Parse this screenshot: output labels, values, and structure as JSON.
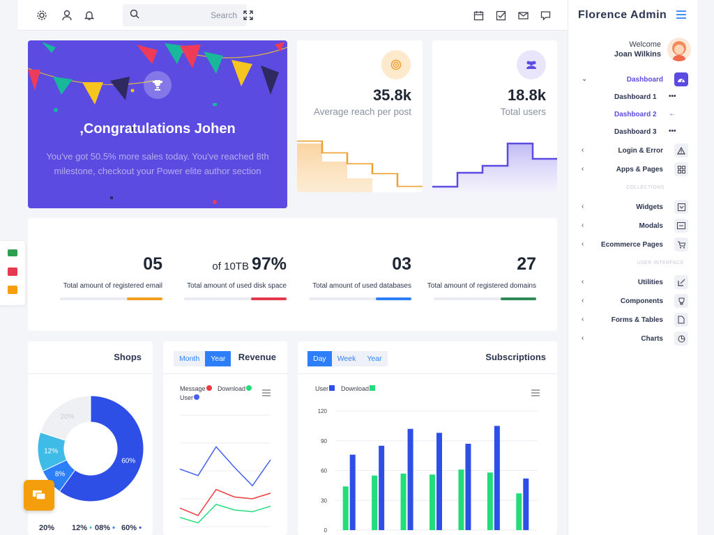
{
  "topbar": {
    "search_placeholder": "Search",
    "left_icons": [
      "gear-icon",
      "user-icon",
      "bell-icon"
    ],
    "right_icons": [
      "calendar-icon",
      "checkbox-icon",
      "mail-icon",
      "chat-icon"
    ]
  },
  "sidebar": {
    "brand": "Florence Admin",
    "welcome": "Welcome",
    "user_name": "Joan Wilkins",
    "dashboard": {
      "label": "Dashboard",
      "icon": "gauge-icon"
    },
    "dashboard_subs": [
      {
        "label": "Dashboard 1",
        "suffix": "•••"
      },
      {
        "label": "Dashboard 2",
        "suffix": "←"
      },
      {
        "label": "Dashboard 3",
        "suffix": "•••"
      }
    ],
    "group1": [
      {
        "label": "Login & Error",
        "icon": "warning-icon"
      },
      {
        "label": "Apps & Pages",
        "icon": "grid-icon"
      }
    ],
    "section_collections": "COLLECTIONS",
    "group2": [
      {
        "label": "Widgets",
        "icon": "widget-icon"
      },
      {
        "label": "Modals",
        "icon": "modal-icon"
      },
      {
        "label": "Ecommerce Pages",
        "icon": "cart-icon"
      }
    ],
    "section_ui": "USER INTERFACE",
    "group3": [
      {
        "label": "Utilities",
        "icon": "edit-icon"
      },
      {
        "label": "Components",
        "icon": "trophy-icon"
      },
      {
        "label": "Forms & Tables",
        "icon": "file-icon"
      },
      {
        "label": "Charts",
        "icon": "pie-icon"
      }
    ]
  },
  "hero": {
    "title": ",Congratulations Johen",
    "desc": "You've got 50.5% more sales today. You've reached 8th milestone, checkout your Power elite author section"
  },
  "stats": [
    {
      "value": "35.8k",
      "label": "Average reach per post",
      "color": "#f0a030"
    },
    {
      "value": "18.8k",
      "label": "Total users",
      "color": "#5b4be0"
    }
  ],
  "metrics": [
    {
      "prefix": "",
      "value": "05",
      "label": "Total amount of registered email",
      "color": "#f0a020",
      "progress": 0.35
    },
    {
      "prefix": "of 10TB",
      "value": "97%",
      "label": "Total amount of used disk space",
      "color": "#e53950",
      "progress": 0.35
    },
    {
      "prefix": "",
      "value": "03",
      "label": "Total amount of used databases",
      "color": "#2d7ff9",
      "progress": 0.35
    },
    {
      "prefix": "",
      "value": "27",
      "label": "Total amount of registered domains",
      "color": "#2e8b57",
      "progress": 0.35
    }
  ],
  "shops": {
    "title": "Shops",
    "bottom_labels": [
      "20%",
      "12%",
      "08%",
      "60%"
    ]
  },
  "revenue": {
    "title": "Revenue",
    "tabs": [
      "Month",
      "Year"
    ],
    "legend": [
      "Message",
      "Download",
      "User"
    ]
  },
  "subscriptions": {
    "title": "Subscriptions",
    "tabs": [
      "Day",
      "Week",
      "Year"
    ],
    "legend": [
      "User",
      "Download"
    ]
  },
  "chart_data": [
    {
      "type": "pie",
      "title": "Shops",
      "labels": [
        "60%",
        "8%",
        "12%",
        "20%"
      ],
      "values": [
        60,
        8,
        12,
        20
      ],
      "colors": [
        "#2d4fe6",
        "#2d7ff9",
        "#3fbbe8",
        "#eef0f4"
      ]
    },
    {
      "type": "line",
      "title": "Revenue",
      "series": [
        {
          "name": "Message",
          "color": "#ee3b3b",
          "values": [
            20,
            12,
            40,
            32,
            30,
            36
          ]
        },
        {
          "name": "Download",
          "color": "#22dd7a",
          "values": [
            10,
            4,
            24,
            18,
            16,
            22
          ]
        },
        {
          "name": "User",
          "color": "#4361ee",
          "values": [
            62,
            55,
            86,
            64,
            44,
            72
          ]
        }
      ],
      "ylim": [
        0,
        120
      ]
    },
    {
      "type": "bar",
      "title": "Subscriptions",
      "yticks": [
        "120",
        "90",
        "60",
        "30",
        "0"
      ],
      "ylim": [
        0,
        120
      ],
      "series": [
        {
          "name": "User",
          "color": "#2d4fe6",
          "values": [
            76,
            85,
            102,
            98,
            87,
            105,
            52
          ]
        },
        {
          "name": "Download",
          "color": "#22dd7a",
          "values": [
            44,
            55,
            57,
            56,
            61,
            58,
            37
          ]
        }
      ]
    }
  ]
}
